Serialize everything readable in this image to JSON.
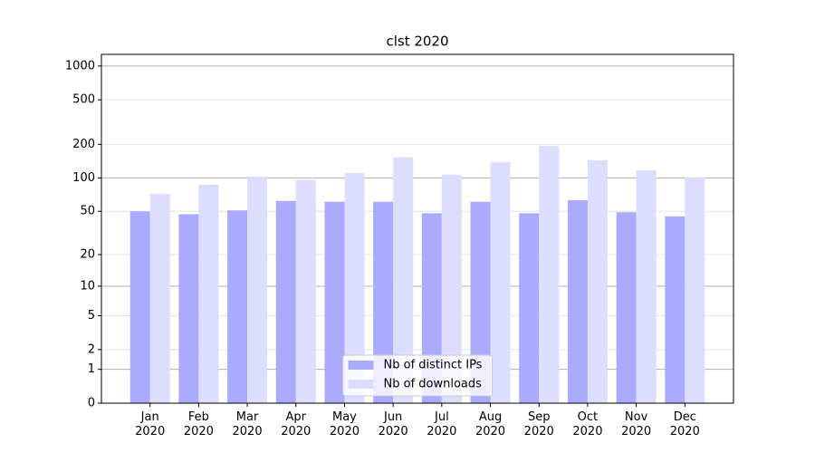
{
  "chart_data": {
    "type": "bar",
    "title": "clst 2020",
    "categories": [
      "Jan\n2020",
      "Feb\n2020",
      "Mar\n2020",
      "Apr\n2020",
      "May\n2020",
      "Jun\n2020",
      "Jul\n2020",
      "Aug\n2020",
      "Sep\n2020",
      "Oct\n2020",
      "Nov\n2020",
      "Dec\n2020"
    ],
    "series": [
      {
        "name": "Nb of distinct IPs",
        "color": "#aaaaff",
        "values": [
          50,
          47,
          51,
          62,
          61,
          61,
          48,
          61,
          48,
          63,
          49,
          45
        ]
      },
      {
        "name": "Nb of downloads",
        "color": "#ddddff",
        "values": [
          72,
          87,
          103,
          96,
          111,
          153,
          107,
          139,
          194,
          144,
          117,
          101
        ]
      }
    ],
    "yscale": "log1p",
    "ylim": [
      0,
      1270
    ],
    "yticks": [
      0,
      1,
      2,
      5,
      10,
      20,
      50,
      100,
      200,
      500,
      1000
    ],
    "grid": true,
    "legend": "lower center"
  }
}
